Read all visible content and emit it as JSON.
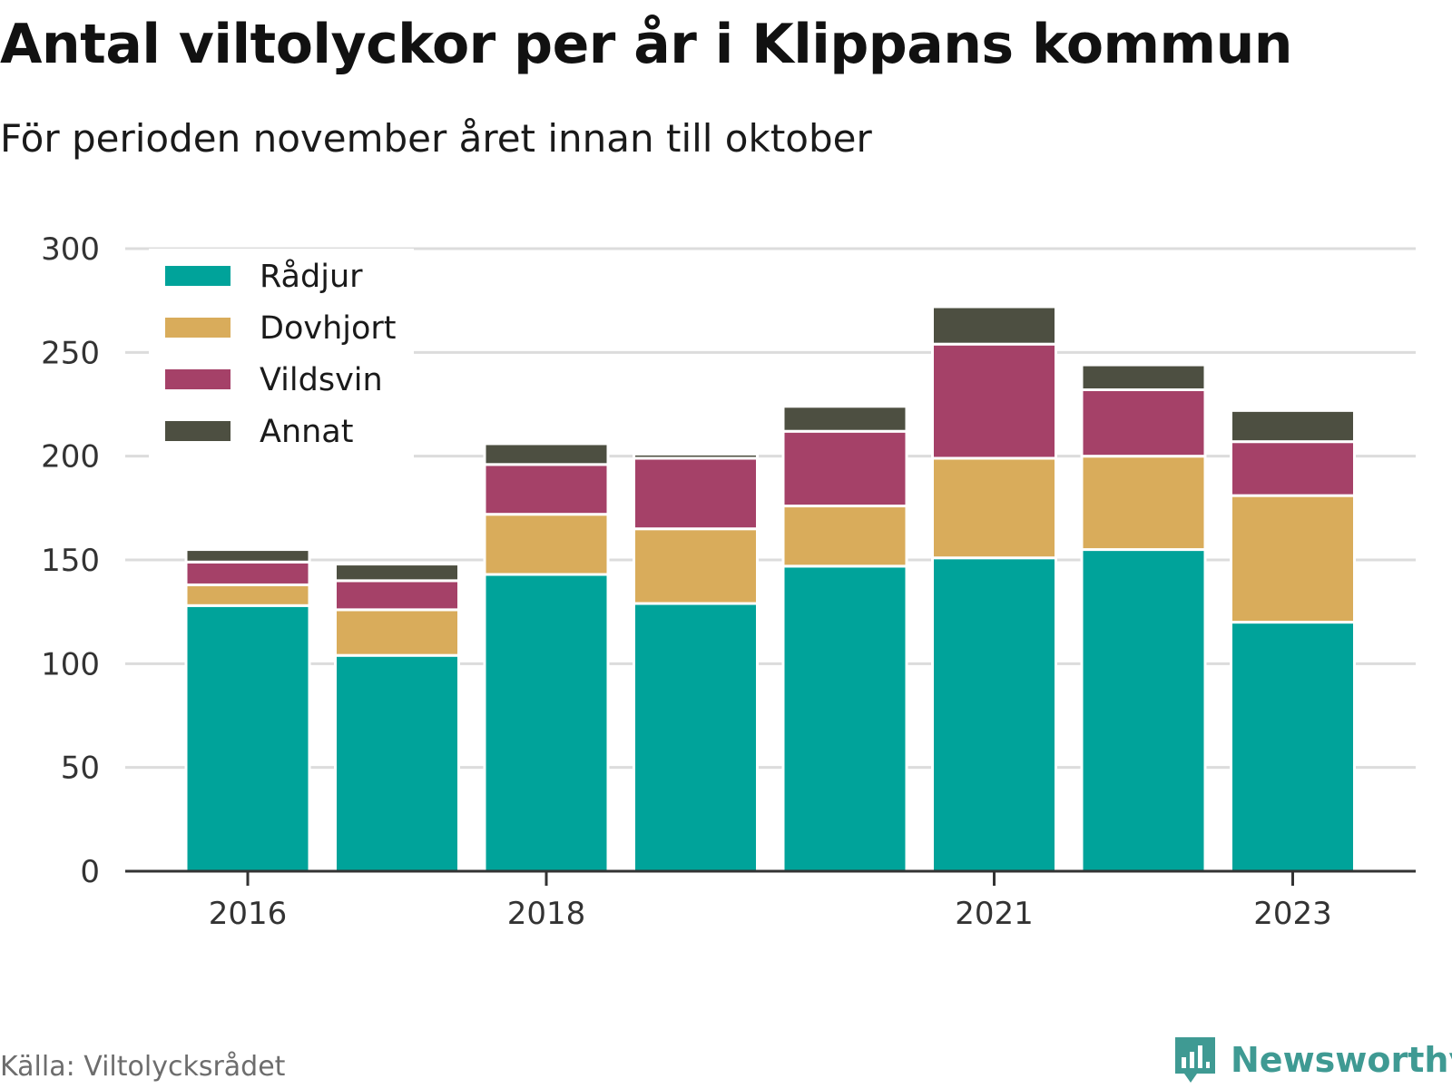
{
  "title": "Antal viltolyckor per år i Klippans kommun",
  "subtitle": "För perioden november året innan till oktober",
  "source": "Källa: Viltolycksrådet",
  "brand": "Newsworthy",
  "chart_data": {
    "type": "bar",
    "stacked": true,
    "categories": [
      "2016",
      "2017",
      "2018",
      "2019",
      "2020",
      "2021",
      "2022",
      "2023"
    ],
    "x_tick_labels": [
      "2016",
      "2018",
      "2021",
      "2023"
    ],
    "series": [
      {
        "name": "Rådjur",
        "color": "#00a39a",
        "values": [
          128,
          104,
          143,
          129,
          147,
          151,
          155,
          120
        ]
      },
      {
        "name": "Dovhjort",
        "color": "#d9ac5b",
        "values": [
          10,
          22,
          29,
          36,
          29,
          48,
          45,
          61
        ]
      },
      {
        "name": "Vildsvin",
        "color": "#a54168",
        "values": [
          11,
          14,
          24,
          34,
          36,
          55,
          32,
          26
        ]
      },
      {
        "name": "Annat",
        "color": "#4d4f41",
        "values": [
          6,
          8,
          10,
          2,
          12,
          18,
          12,
          15
        ]
      }
    ],
    "ylim": [
      0,
      300
    ],
    "yticks": [
      0,
      50,
      100,
      150,
      200,
      250,
      300
    ],
    "grid": true,
    "legend_position": "top-left"
  }
}
